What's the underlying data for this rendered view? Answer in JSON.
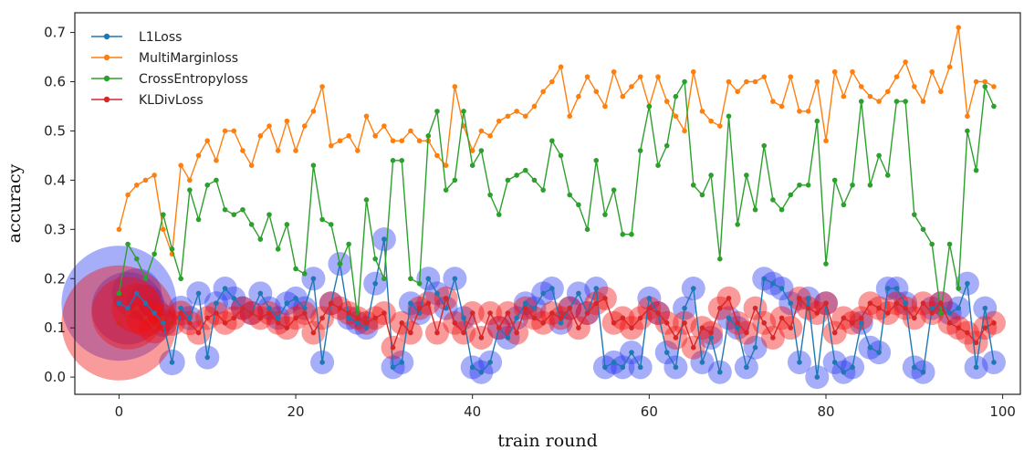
{
  "chart_data": {
    "type": "line",
    "xlabel": "train round",
    "ylabel": "accuracy",
    "xlim": [
      -5,
      102
    ],
    "ylim": [
      -0.035,
      0.74
    ],
    "xticks": [
      0,
      20,
      40,
      60,
      80,
      100
    ],
    "yticks": [
      0.0,
      0.1,
      0.2,
      0.3,
      0.4,
      0.5,
      0.6,
      0.7
    ],
    "grid": false,
    "legend_position": "top-left",
    "x": [
      0,
      1,
      2,
      3,
      4,
      5,
      6,
      7,
      8,
      9,
      10,
      11,
      12,
      13,
      14,
      15,
      16,
      17,
      18,
      19,
      20,
      21,
      22,
      23,
      24,
      25,
      26,
      27,
      28,
      29,
      30,
      31,
      32,
      33,
      34,
      35,
      36,
      37,
      38,
      39,
      40,
      41,
      42,
      43,
      44,
      45,
      46,
      47,
      48,
      49,
      50,
      51,
      52,
      53,
      54,
      55,
      56,
      57,
      58,
      59,
      60,
      61,
      62,
      63,
      64,
      65,
      66,
      67,
      68,
      69,
      70,
      71,
      72,
      73,
      74,
      75,
      76,
      77,
      78,
      79,
      80,
      81,
      82,
      83,
      84,
      85,
      86,
      87,
      88,
      89,
      90,
      91,
      92,
      93,
      94,
      95,
      96,
      97,
      98,
      99
    ],
    "series": [
      {
        "name": "L1Loss",
        "color": "#1f77b4",
        "bubble_color": "#2a3cf0",
        "values": [
          0.15,
          0.14,
          0.17,
          0.15,
          0.13,
          0.11,
          0.03,
          0.14,
          0.12,
          0.17,
          0.04,
          0.15,
          0.18,
          0.16,
          0.14,
          0.13,
          0.17,
          0.14,
          0.12,
          0.15,
          0.16,
          0.14,
          0.2,
          0.03,
          0.15,
          0.23,
          0.12,
          0.11,
          0.1,
          0.19,
          0.28,
          0.02,
          0.03,
          0.15,
          0.13,
          0.2,
          0.17,
          0.14,
          0.2,
          0.12,
          0.02,
          0.01,
          0.03,
          0.1,
          0.08,
          0.12,
          0.15,
          0.14,
          0.17,
          0.18,
          0.11,
          0.14,
          0.17,
          0.13,
          0.18,
          0.02,
          0.03,
          0.02,
          0.05,
          0.02,
          0.16,
          0.13,
          0.05,
          0.02,
          0.14,
          0.18,
          0.03,
          0.08,
          0.01,
          0.12,
          0.1,
          0.02,
          0.06,
          0.2,
          0.19,
          0.18,
          0.15,
          0.03,
          0.16,
          0.0,
          0.15,
          0.03,
          0.01,
          0.02,
          0.11,
          0.06,
          0.05,
          0.18,
          0.18,
          0.15,
          0.02,
          0.01,
          0.14,
          0.15,
          0.13,
          0.14,
          0.19,
          0.02,
          0.14,
          0.03
        ]
      },
      {
        "name": "MultiMarginloss",
        "color": "#ff7f0e",
        "values": [
          0.3,
          0.37,
          0.39,
          0.4,
          0.41,
          0.3,
          0.25,
          0.43,
          0.4,
          0.45,
          0.48,
          0.44,
          0.5,
          0.5,
          0.46,
          0.43,
          0.49,
          0.51,
          0.46,
          0.52,
          0.46,
          0.51,
          0.54,
          0.59,
          0.47,
          0.48,
          0.49,
          0.46,
          0.53,
          0.49,
          0.51,
          0.48,
          0.48,
          0.5,
          0.48,
          0.48,
          0.45,
          0.43,
          0.59,
          0.51,
          0.46,
          0.5,
          0.49,
          0.52,
          0.53,
          0.54,
          0.53,
          0.55,
          0.58,
          0.6,
          0.63,
          0.53,
          0.57,
          0.61,
          0.58,
          0.55,
          0.62,
          0.57,
          0.59,
          0.61,
          0.55,
          0.61,
          0.56,
          0.53,
          0.5,
          0.62,
          0.54,
          0.52,
          0.51,
          0.6,
          0.58,
          0.6,
          0.6,
          0.61,
          0.56,
          0.55,
          0.61,
          0.54,
          0.54,
          0.6,
          0.48,
          0.62,
          0.57,
          0.62,
          0.59,
          0.57,
          0.56,
          0.58,
          0.61,
          0.64,
          0.59,
          0.56,
          0.62,
          0.58,
          0.63,
          0.71,
          0.53,
          0.6,
          0.6,
          0.59
        ]
      },
      {
        "name": "CrossEntropyloss",
        "color": "#2ca02c",
        "values": [
          0.17,
          0.27,
          0.24,
          0.2,
          0.25,
          0.33,
          0.26,
          0.2,
          0.38,
          0.32,
          0.39,
          0.4,
          0.34,
          0.33,
          0.34,
          0.31,
          0.28,
          0.33,
          0.26,
          0.31,
          0.22,
          0.21,
          0.43,
          0.32,
          0.31,
          0.23,
          0.27,
          0.12,
          0.36,
          0.24,
          0.2,
          0.44,
          0.44,
          0.2,
          0.19,
          0.49,
          0.54,
          0.38,
          0.4,
          0.54,
          0.43,
          0.46,
          0.37,
          0.33,
          0.4,
          0.41,
          0.42,
          0.4,
          0.38,
          0.48,
          0.45,
          0.37,
          0.35,
          0.3,
          0.44,
          0.33,
          0.38,
          0.29,
          0.29,
          0.46,
          0.55,
          0.43,
          0.47,
          0.57,
          0.6,
          0.39,
          0.37,
          0.41,
          0.24,
          0.53,
          0.31,
          0.41,
          0.34,
          0.47,
          0.36,
          0.34,
          0.37,
          0.39,
          0.39,
          0.52,
          0.23,
          0.4,
          0.35,
          0.39,
          0.56,
          0.39,
          0.45,
          0.41,
          0.56,
          0.56,
          0.33,
          0.3,
          0.27,
          0.13,
          0.27,
          0.18,
          0.5,
          0.42,
          0.59,
          0.55
        ]
      },
      {
        "name": "KLDivLoss",
        "color": "#d62728",
        "bubble_color": "#f01010",
        "values": [
          0.11,
          0.13,
          0.14,
          0.12,
          0.1,
          0.12,
          0.11,
          0.13,
          0.11,
          0.09,
          0.12,
          0.13,
          0.11,
          0.12,
          0.14,
          0.13,
          0.12,
          0.13,
          0.11,
          0.1,
          0.12,
          0.13,
          0.09,
          0.12,
          0.15,
          0.14,
          0.13,
          0.12,
          0.11,
          0.12,
          0.13,
          0.06,
          0.11,
          0.09,
          0.14,
          0.15,
          0.09,
          0.16,
          0.11,
          0.09,
          0.13,
          0.08,
          0.13,
          0.1,
          0.13,
          0.09,
          0.14,
          0.12,
          0.11,
          0.13,
          0.12,
          0.14,
          0.1,
          0.13,
          0.15,
          0.16,
          0.11,
          0.12,
          0.1,
          0.12,
          0.14,
          0.13,
          0.11,
          0.08,
          0.11,
          0.06,
          0.1,
          0.09,
          0.14,
          0.16,
          0.11,
          0.09,
          0.14,
          0.11,
          0.08,
          0.12,
          0.1,
          0.16,
          0.14,
          0.13,
          0.15,
          0.09,
          0.12,
          0.11,
          0.12,
          0.15,
          0.14,
          0.13,
          0.15,
          0.14,
          0.12,
          0.15,
          0.13,
          0.15,
          0.11,
          0.1,
          0.09,
          0.07,
          0.1,
          0.11
        ]
      }
    ]
  }
}
